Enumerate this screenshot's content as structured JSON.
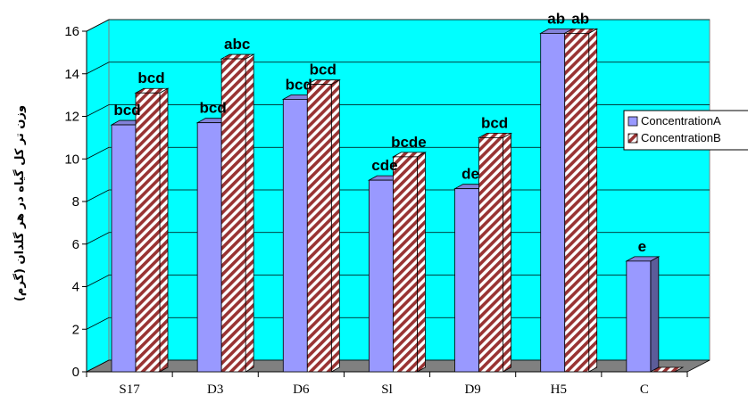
{
  "chart_data": {
    "type": "bar",
    "title": "",
    "xlabel": "",
    "ylabel": "وزن تر کل گیاه در هر گلدان (گرم)",
    "ylim": [
      0,
      16
    ],
    "yticks": [
      0,
      2,
      4,
      6,
      8,
      10,
      12,
      14,
      16
    ],
    "categories": [
      "S17",
      "D3",
      "D6",
      "Sl",
      "D9",
      "H5",
      "C"
    ],
    "series": [
      {
        "name": "ConcentrationA",
        "values": [
          11.6,
          11.7,
          12.8,
          9.0,
          8.6,
          15.9,
          5.2
        ],
        "labels": [
          "bcd",
          "bcd",
          "bcd",
          "cde",
          "de",
          "ab",
          "e"
        ],
        "color": "#9999ff"
      },
      {
        "name": "ConcentrationB",
        "values": [
          13.1,
          14.7,
          13.5,
          10.1,
          11.0,
          15.9,
          0.0
        ],
        "labels": [
          "bcd",
          "abc",
          "bcd",
          "bcde",
          "bcd",
          "ab",
          ""
        ],
        "color": "#993333",
        "pattern": "diagonal-hatch"
      }
    ],
    "grid": true,
    "legend_position": "right",
    "plot_background": "#00ffff",
    "floor_color": "#808080"
  }
}
